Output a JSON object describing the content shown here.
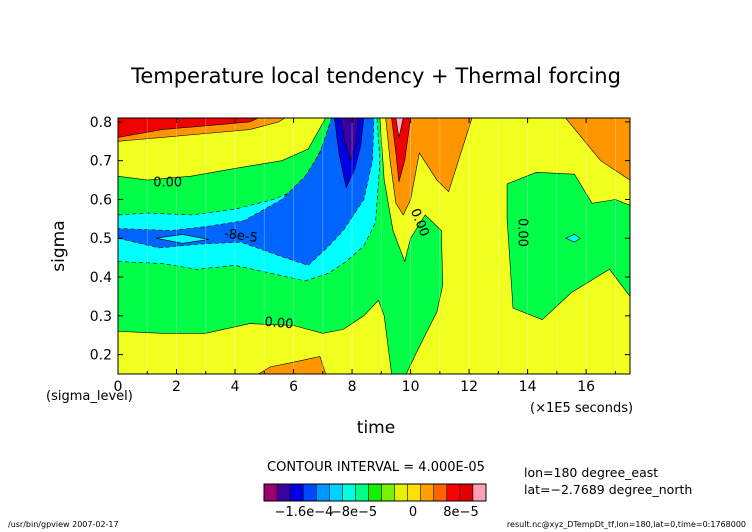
{
  "chart_data": {
    "type": "heatmap",
    "title": "Temperature local tendency + Thermal forcing",
    "xlabel": "time",
    "ylabel": "sigma",
    "x_sublabel": "(sigma_level)",
    "x_units": "(×1E5 seconds)",
    "xlim": [
      0,
      17.5
    ],
    "ylim": [
      0.81,
      0.15
    ],
    "y_reversed": true,
    "x_ticks": [
      {
        "value": 0,
        "label": "0"
      },
      {
        "value": 2,
        "label": "2"
      },
      {
        "value": 4,
        "label": "4"
      },
      {
        "value": 6,
        "label": "6"
      },
      {
        "value": 8,
        "label": "8"
      },
      {
        "value": 10,
        "label": "10"
      },
      {
        "value": 12,
        "label": "12"
      },
      {
        "value": 14,
        "label": "14"
      },
      {
        "value": 16,
        "label": "16"
      }
    ],
    "y_ticks": [
      {
        "value": 0.2,
        "label": "0.2"
      },
      {
        "value": 0.3,
        "label": "0.3"
      },
      {
        "value": 0.4,
        "label": "0.4"
      },
      {
        "value": 0.5,
        "label": "0.5"
      },
      {
        "value": 0.6,
        "label": "0.6"
      },
      {
        "value": 0.7,
        "label": "0.7"
      },
      {
        "value": 0.8,
        "label": "0.8"
      }
    ],
    "contour_interval_text": "CONTOUR INTERVAL = 4.000E-05",
    "contour_labels": [
      {
        "text": "0.00",
        "x": 5.5,
        "y": 0.28,
        "rot": 5
      },
      {
        "text": "-8e-5",
        "x": 4.2,
        "y": 0.505,
        "rot": 8
      },
      {
        "text": "0.00",
        "x": 1.7,
        "y": 0.642,
        "rot": 0
      },
      {
        "text": "0.00",
        "x": 10.3,
        "y": 0.54,
        "rot": 68
      },
      {
        "text": "0.00",
        "x": 13.8,
        "y": 0.515,
        "rot": 90
      }
    ],
    "colorbar": {
      "colors": [
        "#a0006e",
        "#3c00a0",
        "#0000e6",
        "#0046ff",
        "#0096ff",
        "#00d2ff",
        "#00ffdc",
        "#00ff8c",
        "#14f000",
        "#78f000",
        "#e6f000",
        "#fae100",
        "#ffa000",
        "#ff6400",
        "#ff0000",
        "#e10000",
        "#ffa0b4"
      ],
      "tick_labels": [
        "−1.6e−4",
        "−8e−5",
        "0",
        "8e−5"
      ]
    },
    "level_colors": {
      "lt_m1.2e-4": "#0000e6",
      "m1.2e-4_m8e-5": "#0064ff",
      "m8e-5_m4e-5": "#00ffff",
      "m4e-5_0": "#00ff46",
      "0_4e-5": "#f0ff1e",
      "4e-5_8e-5": "#ff9600",
      "8e-5_1.2e-4": "#f00000",
      "gt_1.2e-4": "#ffb0c0"
    }
  },
  "info": {
    "lon": "lon=180 degree_east",
    "lat": "lat=−2.7689 degree_north"
  },
  "footer": {
    "left": "/usr/bin/gpview  2007-02-17",
    "right": "result.nc@xyz_DTempDt_tf,lon=180,lat=0,time=0:1768000"
  }
}
